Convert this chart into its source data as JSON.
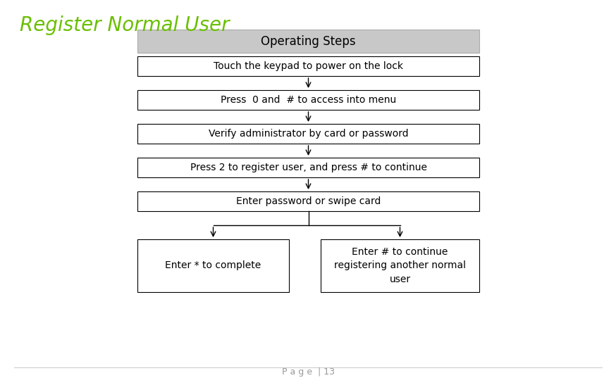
{
  "title": "Register Normal User",
  "title_color": "#6abf00",
  "title_fontsize": 20,
  "header_text": "Operating Steps",
  "header_bg": "#c8c8c8",
  "header_fontsize": 12,
  "box_steps": [
    "Touch the keypad to power on the lock",
    "Press  0 and  # to access into menu",
    "Verify administrator by card or password",
    "Press 2 to register user, and press # to continue",
    "Enter password or swipe card"
  ],
  "split_left": "Enter * to complete",
  "split_right": "Enter # to continue\nregistering another normal\nuser",
  "box_bg": "#ffffff",
  "box_edge": "#000000",
  "text_color": "#000000",
  "step_fontsize": 10,
  "footer_text": "P a g e  | 13",
  "footer_fontsize": 9,
  "footer_color": "#999999"
}
